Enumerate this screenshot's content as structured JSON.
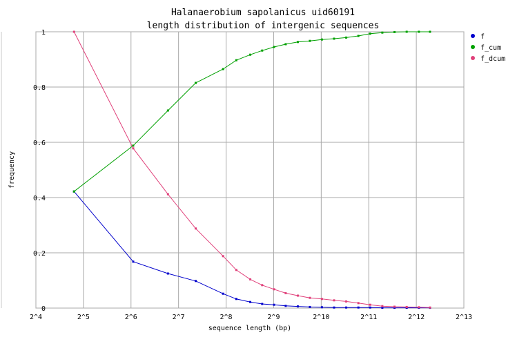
{
  "chart_data": {
    "type": "line",
    "title": "Halanaerobium  sapolanicus  uid60191",
    "subtitle": "length distribution of intergenic sequences",
    "xlabel": "sequence length (bp)",
    "ylabel": "frequency",
    "x_scale": "log2",
    "xlim": [
      16,
      8192
    ],
    "ylim": [
      0,
      1
    ],
    "x_ticks": [
      {
        "value": 16,
        "label": "2^4"
      },
      {
        "value": 32,
        "label": "2^5"
      },
      {
        "value": 64,
        "label": "2^6"
      },
      {
        "value": 128,
        "label": "2^7"
      },
      {
        "value": 256,
        "label": "2^8"
      },
      {
        "value": 512,
        "label": "2^9"
      },
      {
        "value": 1024,
        "label": "2^10"
      },
      {
        "value": 2048,
        "label": "2^11"
      },
      {
        "value": 4096,
        "label": "2^12"
      },
      {
        "value": 8192,
        "label": "2^13"
      }
    ],
    "y_ticks": [
      {
        "value": 0,
        "label": "0"
      },
      {
        "value": 0.2,
        "label": "0.2"
      },
      {
        "value": 0.4,
        "label": "0.4"
      },
      {
        "value": 0.6,
        "label": "0.6"
      },
      {
        "value": 0.8,
        "label": "0.8"
      },
      {
        "value": 1,
        "label": "1"
      }
    ],
    "grid": true,
    "legend_position": "right",
    "series": [
      {
        "name": "f",
        "color": "#0000cc",
        "points": [
          [
            27.9,
            0.422
          ],
          [
            66.1,
            0.168
          ],
          [
            109.7,
            0.125
          ],
          [
            164.3,
            0.098
          ],
          [
            245.0,
            0.052
          ],
          [
            297.0,
            0.033
          ],
          [
            364.0,
            0.022
          ],
          [
            433.0,
            0.015
          ],
          [
            515.0,
            0.012
          ],
          [
            610.0,
            0.008
          ],
          [
            728.0,
            0.006
          ],
          [
            868.0,
            0.004
          ],
          [
            1035.0,
            0.003
          ],
          [
            1235.0,
            0.002
          ],
          [
            1474.0,
            0.002
          ],
          [
            1760.0,
            0.002
          ],
          [
            2090.0,
            0.002
          ],
          [
            2496.0,
            0.001
          ],
          [
            2980.0,
            0.001
          ],
          [
            3560.0,
            0.001
          ],
          [
            4251.0,
            0.001
          ],
          [
            5000.0,
            0.001
          ]
        ]
      },
      {
        "name": "f_cum",
        "color": "#00a000",
        "points": [
          [
            27.9,
            0.422
          ],
          [
            66.1,
            0.588
          ],
          [
            109.7,
            0.715
          ],
          [
            164.3,
            0.815
          ],
          [
            245.0,
            0.865
          ],
          [
            297.0,
            0.897
          ],
          [
            364.0,
            0.917
          ],
          [
            433.0,
            0.932
          ],
          [
            515.0,
            0.945
          ],
          [
            610.0,
            0.955
          ],
          [
            728.0,
            0.963
          ],
          [
            868.0,
            0.967
          ],
          [
            1035.0,
            0.972
          ],
          [
            1235.0,
            0.975
          ],
          [
            1474.0,
            0.979
          ],
          [
            1760.0,
            0.985
          ],
          [
            2090.0,
            0.993
          ],
          [
            2496.0,
            0.997
          ],
          [
            2980.0,
            0.999
          ],
          [
            3560.0,
            1.0
          ],
          [
            4251.0,
            1.0
          ],
          [
            5000.0,
            1.0
          ]
        ]
      },
      {
        "name": "f_dcum",
        "color": "#e0407a",
        "points": [
          [
            27.9,
            1.0
          ],
          [
            66.1,
            0.578
          ],
          [
            109.7,
            0.412
          ],
          [
            164.3,
            0.288
          ],
          [
            245.0,
            0.188
          ],
          [
            297.0,
            0.138
          ],
          [
            364.0,
            0.104
          ],
          [
            433.0,
            0.083
          ],
          [
            515.0,
            0.068
          ],
          [
            610.0,
            0.054
          ],
          [
            728.0,
            0.045
          ],
          [
            868.0,
            0.037
          ],
          [
            1035.0,
            0.033
          ],
          [
            1235.0,
            0.028
          ],
          [
            1474.0,
            0.024
          ],
          [
            1760.0,
            0.018
          ],
          [
            2090.0,
            0.012
          ],
          [
            2496.0,
            0.007
          ],
          [
            2980.0,
            0.005
          ],
          [
            3560.0,
            0.004
          ],
          [
            4251.0,
            0.003
          ],
          [
            5000.0,
            0.002
          ]
        ]
      }
    ]
  }
}
